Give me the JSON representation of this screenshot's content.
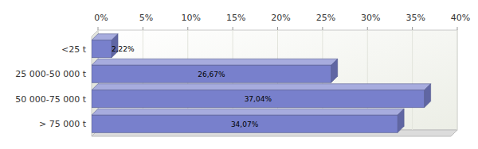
{
  "chart_data": {
    "type": "bar",
    "orientation": "horizontal",
    "categories": [
      "<25 t",
      "25 000-50 000 t",
      "50 000-75 000 t",
      "> 75 000 t"
    ],
    "values": [
      2.22,
      26.67,
      37.04,
      34.07
    ],
    "value_labels": [
      "2,22%",
      "26,67%",
      "37,04%",
      "34,07%"
    ],
    "data_labels": true,
    "color": "#7880cc",
    "xlim": [
      0,
      40
    ],
    "xticks": [
      {
        "value": 0,
        "label": "0%"
      },
      {
        "value": 5,
        "label": "5%"
      },
      {
        "value": 10,
        "label": "10%"
      },
      {
        "value": 15,
        "label": "15%"
      },
      {
        "value": 20,
        "label": "20%"
      },
      {
        "value": 25,
        "label": "25%"
      },
      {
        "value": 30,
        "label": "30%"
      },
      {
        "value": 35,
        "label": "35%"
      },
      {
        "value": 40,
        "label": "40%"
      }
    ],
    "grid": true
  }
}
